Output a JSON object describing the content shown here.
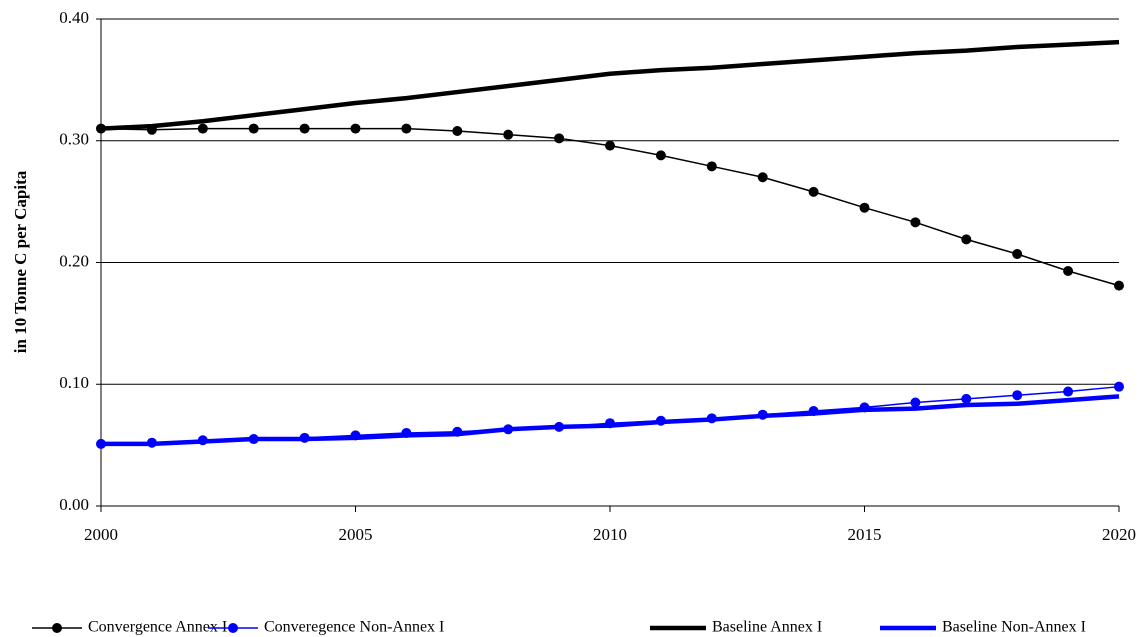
{
  "chart_data": {
    "type": "line",
    "y_label": "in 10 Tonne C per Capita",
    "x": [
      2000,
      2001,
      2002,
      2003,
      2004,
      2005,
      2006,
      2007,
      2008,
      2009,
      2010,
      2011,
      2012,
      2013,
      2014,
      2015,
      2016,
      2017,
      2018,
      2019,
      2020
    ],
    "xlim": [
      2000,
      2020
    ],
    "xticks": [
      2000,
      2005,
      2010,
      2015,
      2020
    ],
    "ylim": [
      0,
      0.4
    ],
    "yticks": [
      {
        "value": 0,
        "label": "0.00"
      },
      {
        "value": 0.1,
        "label": "0.10"
      },
      {
        "value": 0.2,
        "label": "0.20"
      },
      {
        "value": 0.3,
        "label": "0.30"
      },
      {
        "value": 0.4,
        "label": "0.40"
      }
    ],
    "grid": true,
    "legend": "bottom",
    "series": [
      {
        "name": "Convergence Annex I",
        "color": "#000000",
        "linewidth": 1.5,
        "marker": true,
        "values": [
          0.31,
          0.309,
          0.31,
          0.31,
          0.31,
          0.31,
          0.31,
          0.308,
          0.305,
          0.302,
          0.296,
          0.288,
          0.279,
          0.27,
          0.258,
          0.245,
          0.233,
          0.219,
          0.207,
          0.193,
          0.181
        ]
      },
      {
        "name": "Converegence Non-Annex I",
        "color": "#0000ff",
        "linewidth": 1.5,
        "marker": true,
        "values": [
          0.051,
          0.052,
          0.054,
          0.055,
          0.056,
          0.058,
          0.06,
          0.061,
          0.063,
          0.065,
          0.068,
          0.07,
          0.072,
          0.075,
          0.078,
          0.081,
          0.085,
          0.088,
          0.091,
          0.094,
          0.098
        ]
      },
      {
        "name": "Baseline Annex I",
        "color": "#000000",
        "linewidth": 4.5,
        "marker": false,
        "values": [
          0.31,
          0.312,
          0.316,
          0.321,
          0.326,
          0.331,
          0.335,
          0.34,
          0.345,
          0.35,
          0.355,
          0.358,
          0.36,
          0.363,
          0.366,
          0.369,
          0.372,
          0.374,
          0.377,
          0.379,
          0.381
        ]
      },
      {
        "name": "Baseline Non-Annex I",
        "color": "#0000ff",
        "linewidth": 4.5,
        "marker": false,
        "values": [
          0.051,
          0.051,
          0.053,
          0.055,
          0.055,
          0.056,
          0.058,
          0.059,
          0.063,
          0.065,
          0.066,
          0.069,
          0.071,
          0.074,
          0.076,
          0.079,
          0.08,
          0.083,
          0.084,
          0.087,
          0.09
        ]
      }
    ]
  }
}
